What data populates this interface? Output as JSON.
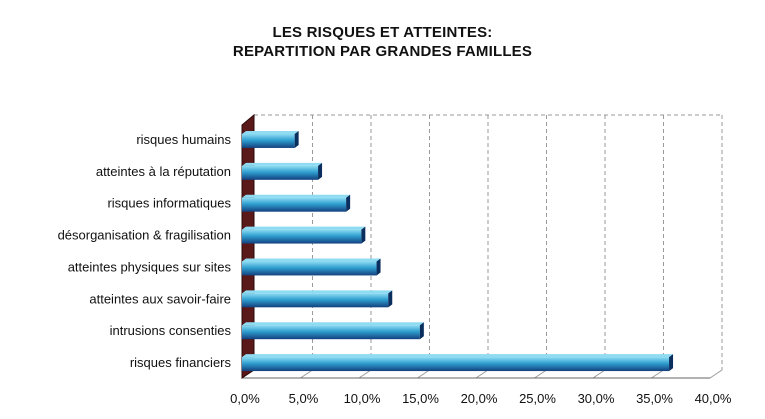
{
  "chart_data": {
    "type": "bar",
    "orientation": "horizontal",
    "title": "LES RISQUES ET ATTEINTES:",
    "subtitle": "REPARTITION PAR GRANDES FAMILLES",
    "categories": [
      "risques humains",
      "atteintes à la réputation",
      "risques informatiques",
      "désorganisation & fragilisation",
      "atteintes physiques sur sites",
      "atteintes aux savoir-faire",
      "intrusions consenties",
      "risques financiers"
    ],
    "values": [
      4.5,
      6.5,
      8.9,
      10.2,
      11.5,
      12.5,
      15.2,
      36.5
    ],
    "xlim": [
      0,
      40
    ],
    "x_ticks": [
      "0,0%",
      "5,0%",
      "10,0%",
      "15,0%",
      "20,0%",
      "25,0%",
      "30,0%",
      "35,0%",
      "40,0%"
    ],
    "grid": true,
    "legend": "none",
    "colors": {
      "bar_top": "#8fdcf2",
      "bar_mid": "#2f9fd0",
      "bar_bottom": "#12407e",
      "bar_end": "#0a2f5e",
      "wall": "#5a1818",
      "grid": "#9a9a9a"
    }
  }
}
